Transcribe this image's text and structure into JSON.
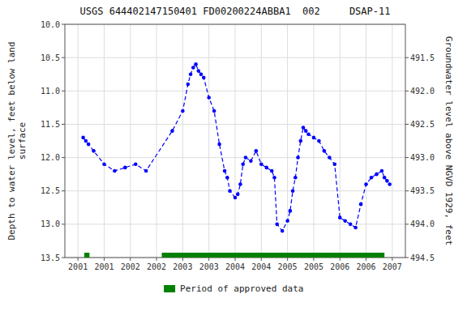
{
  "chart_data": {
    "type": "line",
    "title": "USGS 644402147150401 FD00200224ABBA1  002     DSAP-11",
    "y_label": "Depth to water level, feet below land\nsurface",
    "y2_label": "Groundwater level above NGVD 1929, feet",
    "xlim": [
      2000.75,
      2007.25
    ],
    "xticks": [
      2001,
      {
        "value": 2001.5,
        "label": "2001"
      },
      2002,
      {
        "value": 2002.5,
        "label": "2002"
      },
      2003,
      {
        "value": 2003.5,
        "label": "2003"
      },
      2004,
      {
        "value": 2004.5,
        "label": "2004"
      },
      2005,
      {
        "value": 2005.5,
        "label": "2005"
      },
      2006,
      {
        "value": 2006.5,
        "label": "2006"
      },
      2007
    ],
    "ylim": [
      13.5,
      10.0
    ],
    "yticks": [
      {
        "value": 10.0,
        "label": "10.0"
      },
      10.5,
      {
        "value": 11.0,
        "label": "11.0"
      },
      11.5,
      {
        "value": 12.0,
        "label": "12.0"
      },
      12.5,
      {
        "value": 13.0,
        "label": "13.0"
      },
      13.5
    ],
    "y2lim": [
      494.5,
      491.0
    ],
    "y2ticks": [
      491.5,
      {
        "value": 492.0,
        "label": "492.0"
      },
      492.5,
      {
        "value": 493.0,
        "label": "493.0"
      },
      493.5,
      {
        "value": 494.0,
        "label": "494.0"
      },
      494.5
    ],
    "grid": true,
    "legend": "bottom",
    "x": [
      2001.1,
      2001.15,
      2001.2,
      2001.3,
      2001.5,
      2001.7,
      2001.9,
      2002.1,
      2002.3,
      2002.8,
      2003.0,
      2003.1,
      2003.15,
      2003.2,
      2003.25,
      2003.3,
      2003.35,
      2003.4,
      2003.5,
      2003.6,
      2003.7,
      2003.8,
      2003.85,
      2003.9,
      2004.0,
      2004.05,
      2004.1,
      2004.15,
      2004.2,
      2004.3,
      2004.4,
      2004.5,
      2004.6,
      2004.7,
      2004.75,
      2004.8,
      2004.9,
      2005.0,
      2005.05,
      2005.1,
      2005.15,
      2005.2,
      2005.25,
      2005.3,
      2005.35,
      2005.4,
      2005.5,
      2005.6,
      2005.7,
      2005.8,
      2005.9,
      2006.0,
      2006.1,
      2006.2,
      2006.3,
      2006.4,
      2006.5,
      2006.6,
      2006.7,
      2006.8,
      2006.85,
      2006.9,
      2006.95
    ],
    "series": [
      {
        "type": "line",
        "color": "#0000ff",
        "line_style": "dashed",
        "marker": "circle",
        "values": [
          11.7,
          11.75,
          11.8,
          11.9,
          12.1,
          12.2,
          12.15,
          12.1,
          12.2,
          11.6,
          11.3,
          10.9,
          10.75,
          10.65,
          10.6,
          10.7,
          10.75,
          10.8,
          11.1,
          11.3,
          11.8,
          12.2,
          12.3,
          12.5,
          12.6,
          12.55,
          12.4,
          12.1,
          12.0,
          12.05,
          11.9,
          12.1,
          12.15,
          12.2,
          12.3,
          13.0,
          13.1,
          12.95,
          12.8,
          12.5,
          12.3,
          12.0,
          11.75,
          11.55,
          11.6,
          11.65,
          11.7,
          11.75,
          11.9,
          12.0,
          12.1,
          12.9,
          12.95,
          13.0,
          13.05,
          12.7,
          12.4,
          12.3,
          12.25,
          12.2,
          12.3,
          12.35,
          12.4
        ]
      },
      {
        "type": "range",
        "name": "Period of approved data",
        "color": "#008000",
        "start": [
          2001.12,
          2002.6
        ],
        "end": [
          2001.22,
          2006.85
        ]
      }
    ]
  }
}
